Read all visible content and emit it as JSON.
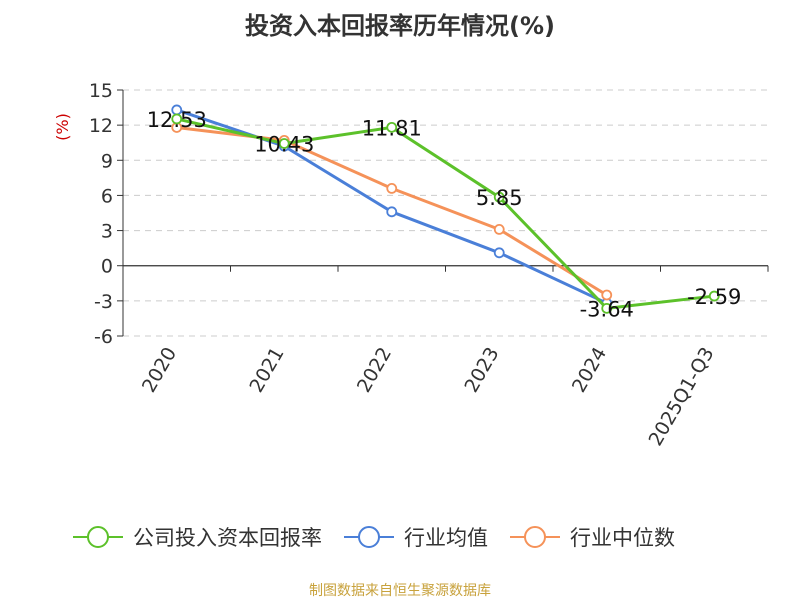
{
  "chart_data": {
    "type": "line",
    "title": "投资入本回报率历年情况(%)",
    "ylabel": "(%)",
    "categories": [
      "2020",
      "2021",
      "2022",
      "2023",
      "2024",
      "2025Q1-Q3"
    ],
    "yticks": [
      15,
      12,
      9,
      6,
      3,
      0,
      -3,
      -6
    ],
    "ylim": [
      -6,
      15
    ],
    "grid": true,
    "legend_position": "bottom",
    "series": [
      {
        "name": "公司投入资本回报率",
        "color": "#5cc12a",
        "values": [
          12.53,
          10.43,
          11.81,
          5.85,
          -3.64,
          -2.59
        ],
        "labels": [
          "12.53",
          "10.43",
          "11.81",
          "5.85",
          "-3.64",
          "-2.59"
        ]
      },
      {
        "name": "行业均值",
        "color": "#4a7fd8",
        "values": [
          13.3,
          10.2,
          4.6,
          1.1,
          -3.2,
          null
        ]
      },
      {
        "name": "行业中位数",
        "color": "#f59259",
        "values": [
          11.8,
          10.7,
          6.6,
          3.1,
          -2.5,
          null
        ]
      }
    ]
  },
  "source": "制图数据来自恒生聚源数据库"
}
